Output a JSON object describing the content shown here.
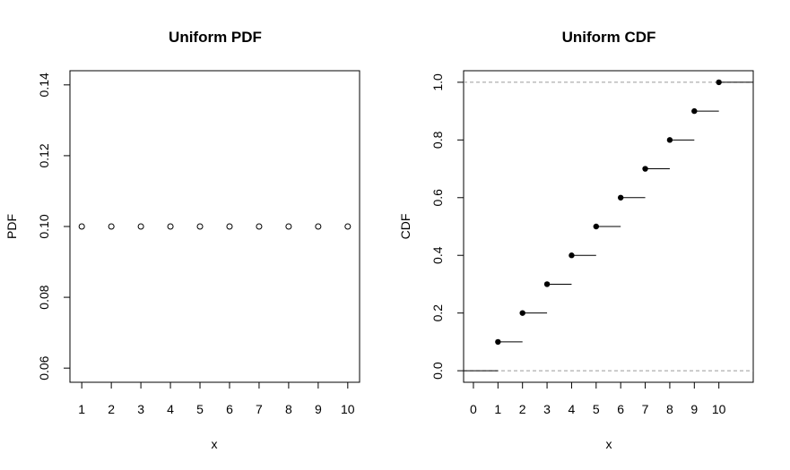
{
  "chart_data": [
    {
      "type": "scatter",
      "title": "Uniform PDF",
      "xlabel": "x",
      "ylabel": "PDF",
      "x_ticks": [
        "1",
        "2",
        "3",
        "4",
        "5",
        "6",
        "7",
        "8",
        "9",
        "10"
      ],
      "y_ticks": [
        "0.06",
        "0.08",
        "0.10",
        "0.12",
        "0.14"
      ],
      "xlim": [
        0.6,
        10.4
      ],
      "ylim": [
        0.056,
        0.144
      ],
      "grid": false,
      "marker": "open-circle",
      "series": [
        {
          "x": [
            1,
            2,
            3,
            4,
            5,
            6,
            7,
            8,
            9,
            10
          ],
          "y": [
            0.1,
            0.1,
            0.1,
            0.1,
            0.1,
            0.1,
            0.1,
            0.1,
            0.1,
            0.1
          ]
        }
      ]
    },
    {
      "type": "line",
      "title": "Uniform CDF",
      "xlabel": "x",
      "ylabel": "CDF",
      "x_ticks": [
        "0",
        "1",
        "2",
        "3",
        "4",
        "5",
        "6",
        "7",
        "8",
        "9",
        "10"
      ],
      "y_ticks": [
        "0.0",
        "0.2",
        "0.4",
        "0.6",
        "0.8",
        "1.0"
      ],
      "xlim": [
        -0.4,
        11.4
      ],
      "ylim": [
        -0.04,
        1.04
      ],
      "grid": false,
      "style": "step",
      "reference_lines": [
        0,
        1
      ],
      "series": [
        {
          "x": [
            1,
            2,
            3,
            4,
            5,
            6,
            7,
            8,
            9,
            10
          ],
          "y": [
            0.1,
            0.2,
            0.3,
            0.4,
            0.5,
            0.6,
            0.7,
            0.8,
            0.9,
            1.0
          ]
        }
      ]
    }
  ]
}
